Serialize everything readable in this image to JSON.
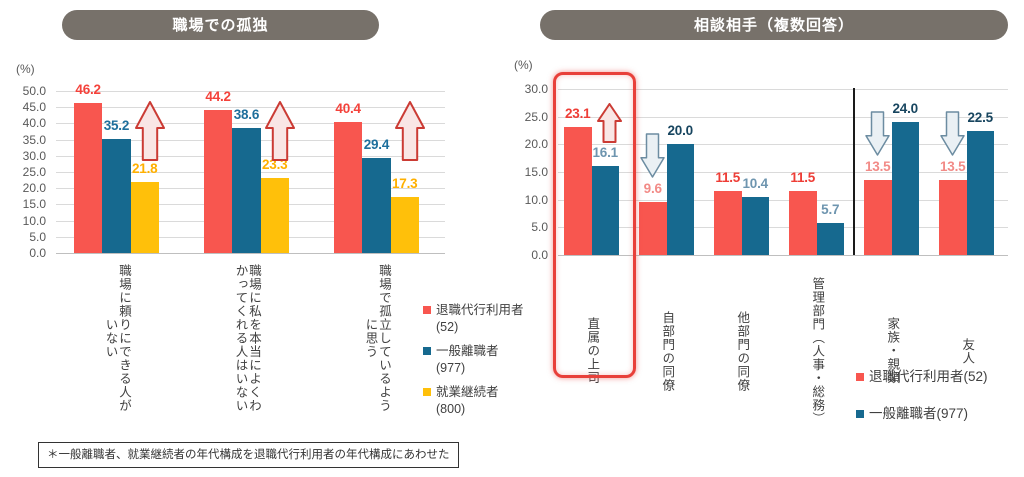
{
  "note": "＊一般離職者、就業継続者の年代構成を退職代行利用者の年代構成にあわせた",
  "colors": {
    "red_bar": "#F8564F",
    "blue_bar": "#16698F",
    "yellow_bar": "#FFC00A",
    "title_pill_bg": "#77716A",
    "title_text": "#FFFFFF",
    "axis_text": "#595959",
    "gridline": "#DADADA",
    "category_text": "#404040",
    "up_arrow_fill": "#F9E6E5",
    "up_arrow_border": "#CB3B34",
    "down_arrow_fill": "#EAF0F4",
    "down_arrow_border": "#6C8CA1",
    "highlight_border": "#E8403A",
    "divider": "#1A1A1A"
  },
  "charts": [
    {
      "title": "職場での孤独",
      "unit_label": "(%)",
      "chart_data": {
        "type": "bar",
        "title": "職場での孤独",
        "ylabel": "(%)",
        "ylim": [
          0,
          50
        ],
        "ytick_step": 5,
        "grid": true,
        "legend_position": "right-bottom",
        "categories": [
          "職場に頼りにできる人がいない",
          "職場に私を本当によくわかってくれる人はいない",
          "職場で孤立しているように思う"
        ],
        "series": [
          {
            "name": "退職代行利用者(52)",
            "color": "#F8564F",
            "values": [
              46.2,
              44.2,
              40.4
            ],
            "value_color": "#F4423B"
          },
          {
            "name": "一般離職者(977)",
            "color": "#16698F",
            "values": [
              35.2,
              38.6,
              29.4
            ],
            "value_color": "#1E6F9C"
          },
          {
            "name": "就業継続者(800)",
            "color": "#FFC00A",
            "values": [
              21.8,
              23.3,
              17.3
            ],
            "value_color": "#FFB000"
          }
        ],
        "annotations": {
          "up_arrow_after_groups": [
            0,
            1,
            2
          ]
        }
      }
    },
    {
      "title": "相談相手（複数回答）",
      "unit_label": "(%)",
      "chart_data": {
        "type": "bar",
        "title": "相談相手（複数回答）",
        "ylabel": "(%)",
        "ylim": [
          0,
          30
        ],
        "ytick_step": 5,
        "grid": true,
        "legend_position": "right-bottom",
        "categories": [
          "直属の上司",
          "自部門の同僚",
          "他部門の同僚",
          "管理部門（人事・総務）",
          "家族・親類",
          "友人"
        ],
        "series": [
          {
            "name": "退職代行利用者(52)",
            "color": "#F8564F",
            "values": [
              23.1,
              9.6,
              11.5,
              11.5,
              13.5,
              13.5
            ],
            "value_colors": [
              "#EE3D36",
              "#F28B87",
              "#EE3D36",
              "#EE3D36",
              "#F28B87",
              "#F28B87"
            ]
          },
          {
            "name": "一般離職者(977)",
            "color": "#16698F",
            "values": [
              16.1,
              20.0,
              10.4,
              5.7,
              24.0,
              22.5
            ],
            "value_colors": [
              "#6E95AF",
              "#17455F",
              "#6E95AF",
              "#6E95AF",
              "#17455F",
              "#17455F"
            ]
          }
        ],
        "annotations": {
          "highlight_categories": [
            0
          ],
          "up_arrow_categories": [
            0
          ],
          "down_arrow_categories": [
            1,
            4,
            5
          ],
          "divider_after_category": 3
        }
      }
    }
  ]
}
